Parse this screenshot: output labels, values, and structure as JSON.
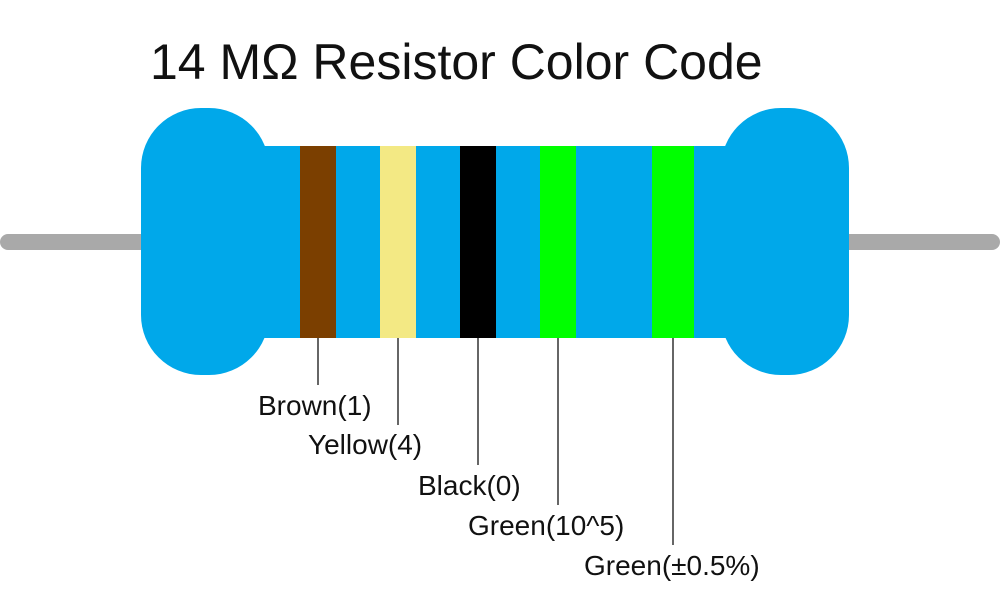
{
  "title": "14 MΩ Resistor Color Code",
  "colors": {
    "body": "#00A8EA",
    "lead": "#A9A9A9",
    "leader_line": "#000000"
  },
  "bands": [
    {
      "name": "brown",
      "color": "#7B3F00",
      "label": "Brown(1)"
    },
    {
      "name": "yellow",
      "color": "#F3E984",
      "label": "Yellow(4)"
    },
    {
      "name": "black",
      "color": "#000000",
      "label": "Black(0)"
    },
    {
      "name": "green",
      "color": "#00FF00",
      "label": "Green(10^5)"
    },
    {
      "name": "green",
      "color": "#00FF00",
      "label": "Green(±0.5%)"
    }
  ]
}
